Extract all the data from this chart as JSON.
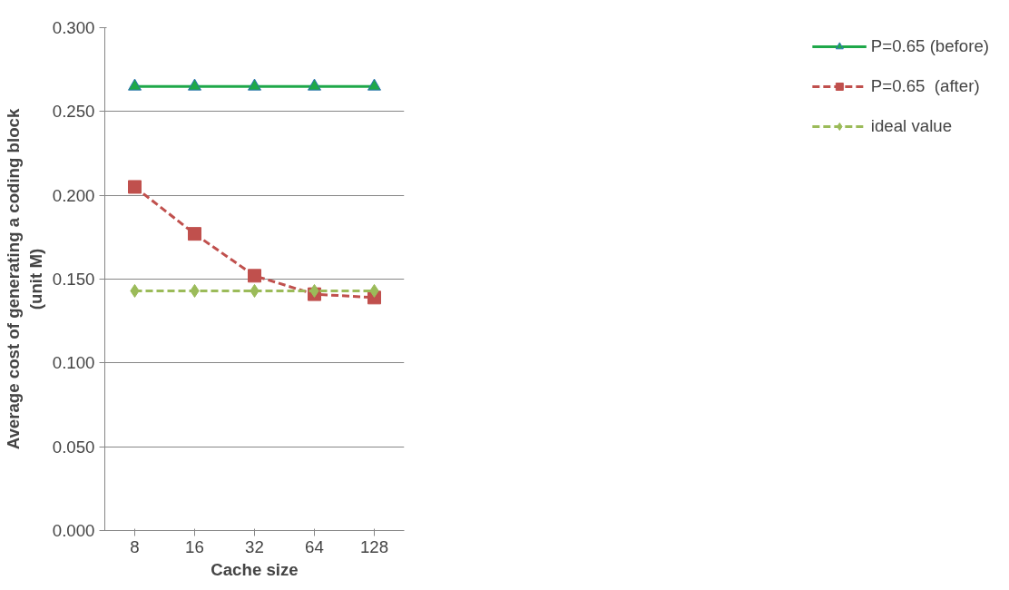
{
  "chart_data": {
    "type": "line",
    "xlabel": "Cache size",
    "ylabel": "Average cost of generating a coding block\n(unit M)",
    "categories": [
      "8",
      "16",
      "32",
      "64",
      "128"
    ],
    "series": [
      {
        "name": "P=0.65 (before)",
        "color": "#1fa84a",
        "marker": "triangle",
        "line_style": "solid",
        "values": [
          0.265,
          0.265,
          0.265,
          0.265,
          0.265
        ]
      },
      {
        "name": "P=0.65  (after)",
        "color": "#c0504d",
        "marker": "square",
        "line_style": "dashed",
        "values": [
          0.205,
          0.177,
          0.152,
          0.141,
          0.139
        ]
      },
      {
        "name": "ideal value",
        "color": "#9bbb59",
        "marker": "diamond",
        "line_style": "dashed",
        "values": [
          0.143,
          0.143,
          0.143,
          0.143,
          0.143
        ]
      }
    ],
    "ylim": [
      0,
      0.3
    ],
    "yticks": [
      {
        "value": 0,
        "label": "0.000"
      },
      {
        "value": 0.05,
        "label": "0.050"
      },
      {
        "value": 0.1,
        "label": "0.100"
      },
      {
        "value": 0.15,
        "label": "0.150"
      },
      {
        "value": 0.2,
        "label": "0.200"
      },
      {
        "value": 0.25,
        "label": "0.250"
      },
      {
        "value": 0.3,
        "label": "0.300"
      }
    ],
    "grid": "y",
    "legend": "right"
  }
}
